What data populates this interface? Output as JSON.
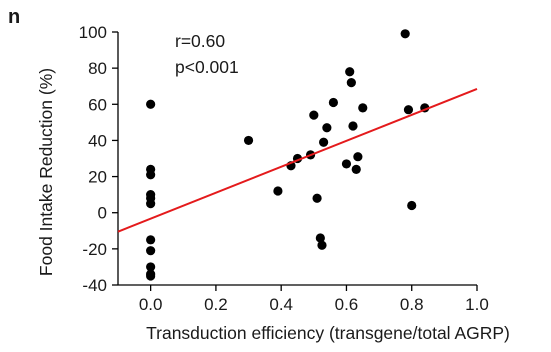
{
  "chart_data": {
    "type": "scatter",
    "panel_label": "n",
    "xlabel": "Transduction efficiency (transgene/total AGRP)",
    "ylabel": "Food Intake Reduction (%)",
    "xlim": [
      -0.1,
      1.0
    ],
    "ylim": [
      -40,
      100
    ],
    "x_ticks": [
      0.0,
      0.2,
      0.4,
      0.6,
      0.8,
      1.0
    ],
    "x_tick_labels": [
      "0.0",
      "0.2",
      "0.4",
      "0.6",
      "0.8",
      "1.0"
    ],
    "y_ticks": [
      -40,
      -20,
      0,
      20,
      40,
      60,
      80,
      100
    ],
    "y_tick_labels": [
      "-40",
      "-20",
      "0",
      "20",
      "40",
      "60",
      "80",
      "100"
    ],
    "annotations": [
      "r=0.60",
      "p<0.001"
    ],
    "grid": false,
    "legend": "none",
    "points": [
      {
        "x": 0.0,
        "y": 60
      },
      {
        "x": 0.0,
        "y": 24
      },
      {
        "x": 0.0,
        "y": 21
      },
      {
        "x": 0.0,
        "y": 10
      },
      {
        "x": 0.0,
        "y": 8
      },
      {
        "x": 0.0,
        "y": 5
      },
      {
        "x": 0.0,
        "y": -15
      },
      {
        "x": 0.0,
        "y": -21
      },
      {
        "x": 0.0,
        "y": -30
      },
      {
        "x": 0.0,
        "y": -34
      },
      {
        "x": 0.0,
        "y": -35
      },
      {
        "x": 0.3,
        "y": 40
      },
      {
        "x": 0.39,
        "y": 12
      },
      {
        "x": 0.43,
        "y": 26
      },
      {
        "x": 0.45,
        "y": 30
      },
      {
        "x": 0.49,
        "y": 32
      },
      {
        "x": 0.5,
        "y": 54
      },
      {
        "x": 0.51,
        "y": 8
      },
      {
        "x": 0.52,
        "y": -14
      },
      {
        "x": 0.525,
        "y": -18
      },
      {
        "x": 0.53,
        "y": 39
      },
      {
        "x": 0.54,
        "y": 47
      },
      {
        "x": 0.56,
        "y": 61
      },
      {
        "x": 0.6,
        "y": 27
      },
      {
        "x": 0.61,
        "y": 78
      },
      {
        "x": 0.615,
        "y": 72
      },
      {
        "x": 0.62,
        "y": 48
      },
      {
        "x": 0.63,
        "y": 24
      },
      {
        "x": 0.635,
        "y": 31
      },
      {
        "x": 0.65,
        "y": 58
      },
      {
        "x": 0.78,
        "y": 99
      },
      {
        "x": 0.79,
        "y": 57
      },
      {
        "x": 0.8,
        "y": 4
      },
      {
        "x": 0.84,
        "y": 58
      }
    ],
    "regression": {
      "x": [
        -0.1,
        1.0
      ],
      "y": [
        -10.5,
        68.5
      ],
      "color": "#e41a1c"
    },
    "point_color": "#000000",
    "axis_color": "#000000"
  }
}
